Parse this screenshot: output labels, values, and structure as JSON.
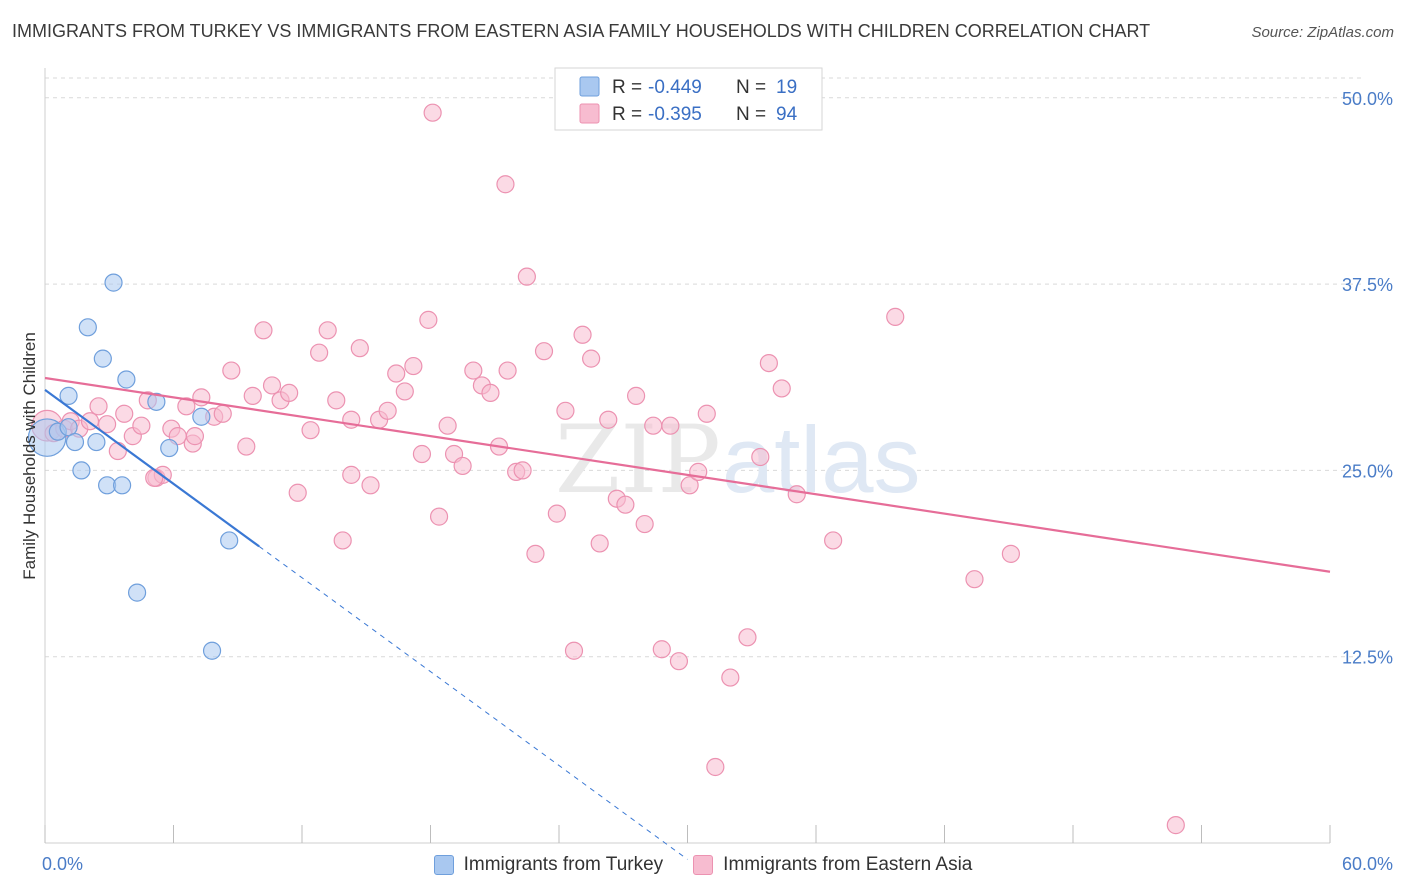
{
  "title": "IMMIGRANTS FROM TURKEY VS IMMIGRANTS FROM EASTERN ASIA FAMILY HOUSEHOLDS WITH CHILDREN CORRELATION CHART",
  "source": "Source: ZipAtlas.com",
  "watermark": {
    "zip": "ZIP",
    "atlas": "atlas"
  },
  "colors": {
    "turkey_fill": "#a9c8f0",
    "turkey_stroke": "#6f9fdc",
    "turkey_line": "#3a78d4",
    "asia_fill": "#f7bcd0",
    "asia_stroke": "#ec92b1",
    "asia_line": "#e66d98",
    "tick_label": "#4a7cc7",
    "grid": "#d9d9d9"
  },
  "legend": {
    "r_label": "R =",
    "n_label": "N =",
    "rows": [
      {
        "r": "-0.449",
        "n": "19"
      },
      {
        "r": "-0.395",
        "n": "94"
      }
    ]
  },
  "bottom_legend": [
    {
      "label": "Immigrants from Turkey"
    },
    {
      "label": "Immigrants from Eastern Asia"
    }
  ],
  "chart_data": {
    "type": "scatter",
    "xlabel": "",
    "ylabel": "Family Households with Children",
    "xlim": [
      0,
      60
    ],
    "ylim": [
      0,
      52
    ],
    "x_tick_labels": [
      {
        "value": 0,
        "label": "0.0%"
      },
      {
        "value": 60,
        "label": "60.0%"
      }
    ],
    "x_minor_ticks": [
      0,
      6,
      12,
      18,
      24,
      30,
      36,
      42,
      48,
      54,
      60
    ],
    "y_ticks": [
      {
        "value": 12.5,
        "label": "12.5%"
      },
      {
        "value": 25.0,
        "label": "25.0%"
      },
      {
        "value": 37.5,
        "label": "37.5%"
      },
      {
        "value": 50.0,
        "label": "50.0%"
      }
    ],
    "grid": "horizontal dashed",
    "legend_position": "top-center",
    "series": [
      {
        "name": "Immigrants from Turkey",
        "r": -0.449,
        "n": 19,
        "trend": {
          "x0": 0,
          "y0": 30.4,
          "x1": 10,
          "y1": 19.9,
          "dashed_to_x": 30
        },
        "points": [
          [
            0.1,
            27.2,
            2.2
          ],
          [
            0.6,
            27.6,
            1
          ],
          [
            1.1,
            27.9,
            1
          ],
          [
            1.1,
            30.0,
            1
          ],
          [
            1.4,
            26.9,
            1
          ],
          [
            1.7,
            25.0,
            1
          ],
          [
            2.0,
            34.6,
            1
          ],
          [
            2.4,
            26.9,
            1
          ],
          [
            2.7,
            32.5,
            1
          ],
          [
            2.9,
            24.0,
            1
          ],
          [
            3.2,
            37.6,
            1
          ],
          [
            3.6,
            24.0,
            1
          ],
          [
            3.8,
            31.1,
            1
          ],
          [
            5.2,
            29.6,
            1
          ],
          [
            5.8,
            26.5,
            1
          ],
          [
            7.3,
            28.6,
            1
          ],
          [
            7.8,
            12.9,
            1
          ],
          [
            8.6,
            20.3,
            1
          ],
          [
            4.3,
            16.8,
            1
          ]
        ]
      },
      {
        "name": "Immigrants from Eastern Asia",
        "r": -0.395,
        "n": 94,
        "trend": {
          "x0": 0,
          "y0": 31.2,
          "x1": 60,
          "y1": 18.2
        },
        "points": [
          [
            0.1,
            28.0,
            1.8
          ],
          [
            0.4,
            27.5,
            1
          ],
          [
            0.9,
            27.8,
            1
          ],
          [
            1.2,
            28.3,
            1
          ],
          [
            1.6,
            27.8,
            1
          ],
          [
            2.1,
            28.3,
            1
          ],
          [
            2.5,
            29.3,
            1
          ],
          [
            2.9,
            28.1,
            1
          ],
          [
            3.4,
            26.3,
            1
          ],
          [
            3.7,
            28.8,
            1
          ],
          [
            4.1,
            27.3,
            1
          ],
          [
            4.5,
            28.0,
            1
          ],
          [
            4.8,
            29.7,
            1
          ],
          [
            5.2,
            24.5,
            1
          ],
          [
            5.5,
            24.7,
            1
          ],
          [
            5.9,
            27.8,
            1
          ],
          [
            6.2,
            27.3,
            1
          ],
          [
            6.6,
            29.3,
            1
          ],
          [
            6.9,
            26.8,
            1
          ],
          [
            7.3,
            29.9,
            1
          ],
          [
            7.9,
            28.6,
            1
          ],
          [
            8.3,
            28.8,
            1
          ],
          [
            8.7,
            31.7,
            1
          ],
          [
            9.4,
            26.6,
            1
          ],
          [
            9.7,
            30.0,
            1
          ],
          [
            10.2,
            34.4,
            1
          ],
          [
            10.6,
            30.7,
            1
          ],
          [
            11.0,
            29.7,
            1
          ],
          [
            11.4,
            30.2,
            1
          ],
          [
            11.8,
            23.5,
            1
          ],
          [
            12.4,
            27.7,
            1
          ],
          [
            12.8,
            32.9,
            1
          ],
          [
            13.2,
            34.4,
            1
          ],
          [
            13.6,
            29.7,
            1
          ],
          [
            13.9,
            20.3,
            1
          ],
          [
            14.3,
            28.4,
            1
          ],
          [
            14.7,
            33.2,
            1
          ],
          [
            15.2,
            24.0,
            1
          ],
          [
            15.6,
            28.4,
            1
          ],
          [
            16.0,
            29.0,
            1
          ],
          [
            16.4,
            31.5,
            1
          ],
          [
            16.8,
            30.3,
            1
          ],
          [
            17.2,
            32.0,
            1
          ],
          [
            17.6,
            26.1,
            1
          ],
          [
            17.9,
            35.1,
            1
          ],
          [
            18.4,
            21.9,
            1
          ],
          [
            18.8,
            28.0,
            1
          ],
          [
            19.1,
            26.1,
            1
          ],
          [
            19.5,
            25.3,
            1
          ],
          [
            20.0,
            31.7,
            1
          ],
          [
            20.4,
            30.7,
            1
          ],
          [
            20.8,
            30.2,
            1
          ],
          [
            21.2,
            26.6,
            1
          ],
          [
            21.6,
            31.7,
            1
          ],
          [
            22.0,
            24.9,
            1
          ],
          [
            22.5,
            38.0,
            1
          ],
          [
            22.9,
            19.4,
            1
          ],
          [
            23.3,
            33.0,
            1
          ],
          [
            23.9,
            22.1,
            1
          ],
          [
            24.3,
            29.0,
            1
          ],
          [
            24.7,
            12.9,
            1
          ],
          [
            25.1,
            34.1,
            1
          ],
          [
            25.5,
            32.5,
            1
          ],
          [
            25.9,
            20.1,
            1
          ],
          [
            26.3,
            28.4,
            1
          ],
          [
            26.7,
            23.1,
            1
          ],
          [
            27.1,
            22.7,
            1
          ],
          [
            27.6,
            30.0,
            1
          ],
          [
            28.0,
            21.4,
            1
          ],
          [
            28.4,
            28.0,
            1
          ],
          [
            28.8,
            13.0,
            1
          ],
          [
            29.2,
            28.0,
            1
          ],
          [
            29.6,
            12.2,
            1
          ],
          [
            30.1,
            24.0,
            1
          ],
          [
            30.5,
            24.9,
            1
          ],
          [
            30.9,
            28.8,
            1
          ],
          [
            31.3,
            5.1,
            1
          ],
          [
            32.0,
            11.1,
            1
          ],
          [
            32.8,
            13.8,
            1
          ],
          [
            33.4,
            25.9,
            1
          ],
          [
            33.8,
            32.2,
            1
          ],
          [
            34.4,
            30.5,
            1
          ],
          [
            35.1,
            23.4,
            1
          ],
          [
            36.8,
            20.3,
            1
          ],
          [
            39.7,
            35.3,
            1
          ],
          [
            43.4,
            17.7,
            1
          ],
          [
            45.1,
            19.4,
            1
          ],
          [
            52.8,
            1.2,
            1
          ],
          [
            18.1,
            49.0,
            1
          ],
          [
            21.5,
            44.2,
            1
          ],
          [
            22.3,
            25.0,
            1
          ],
          [
            5.1,
            24.5,
            1
          ],
          [
            14.3,
            24.7,
            1
          ],
          [
            7.0,
            27.3,
            1
          ]
        ]
      }
    ]
  }
}
